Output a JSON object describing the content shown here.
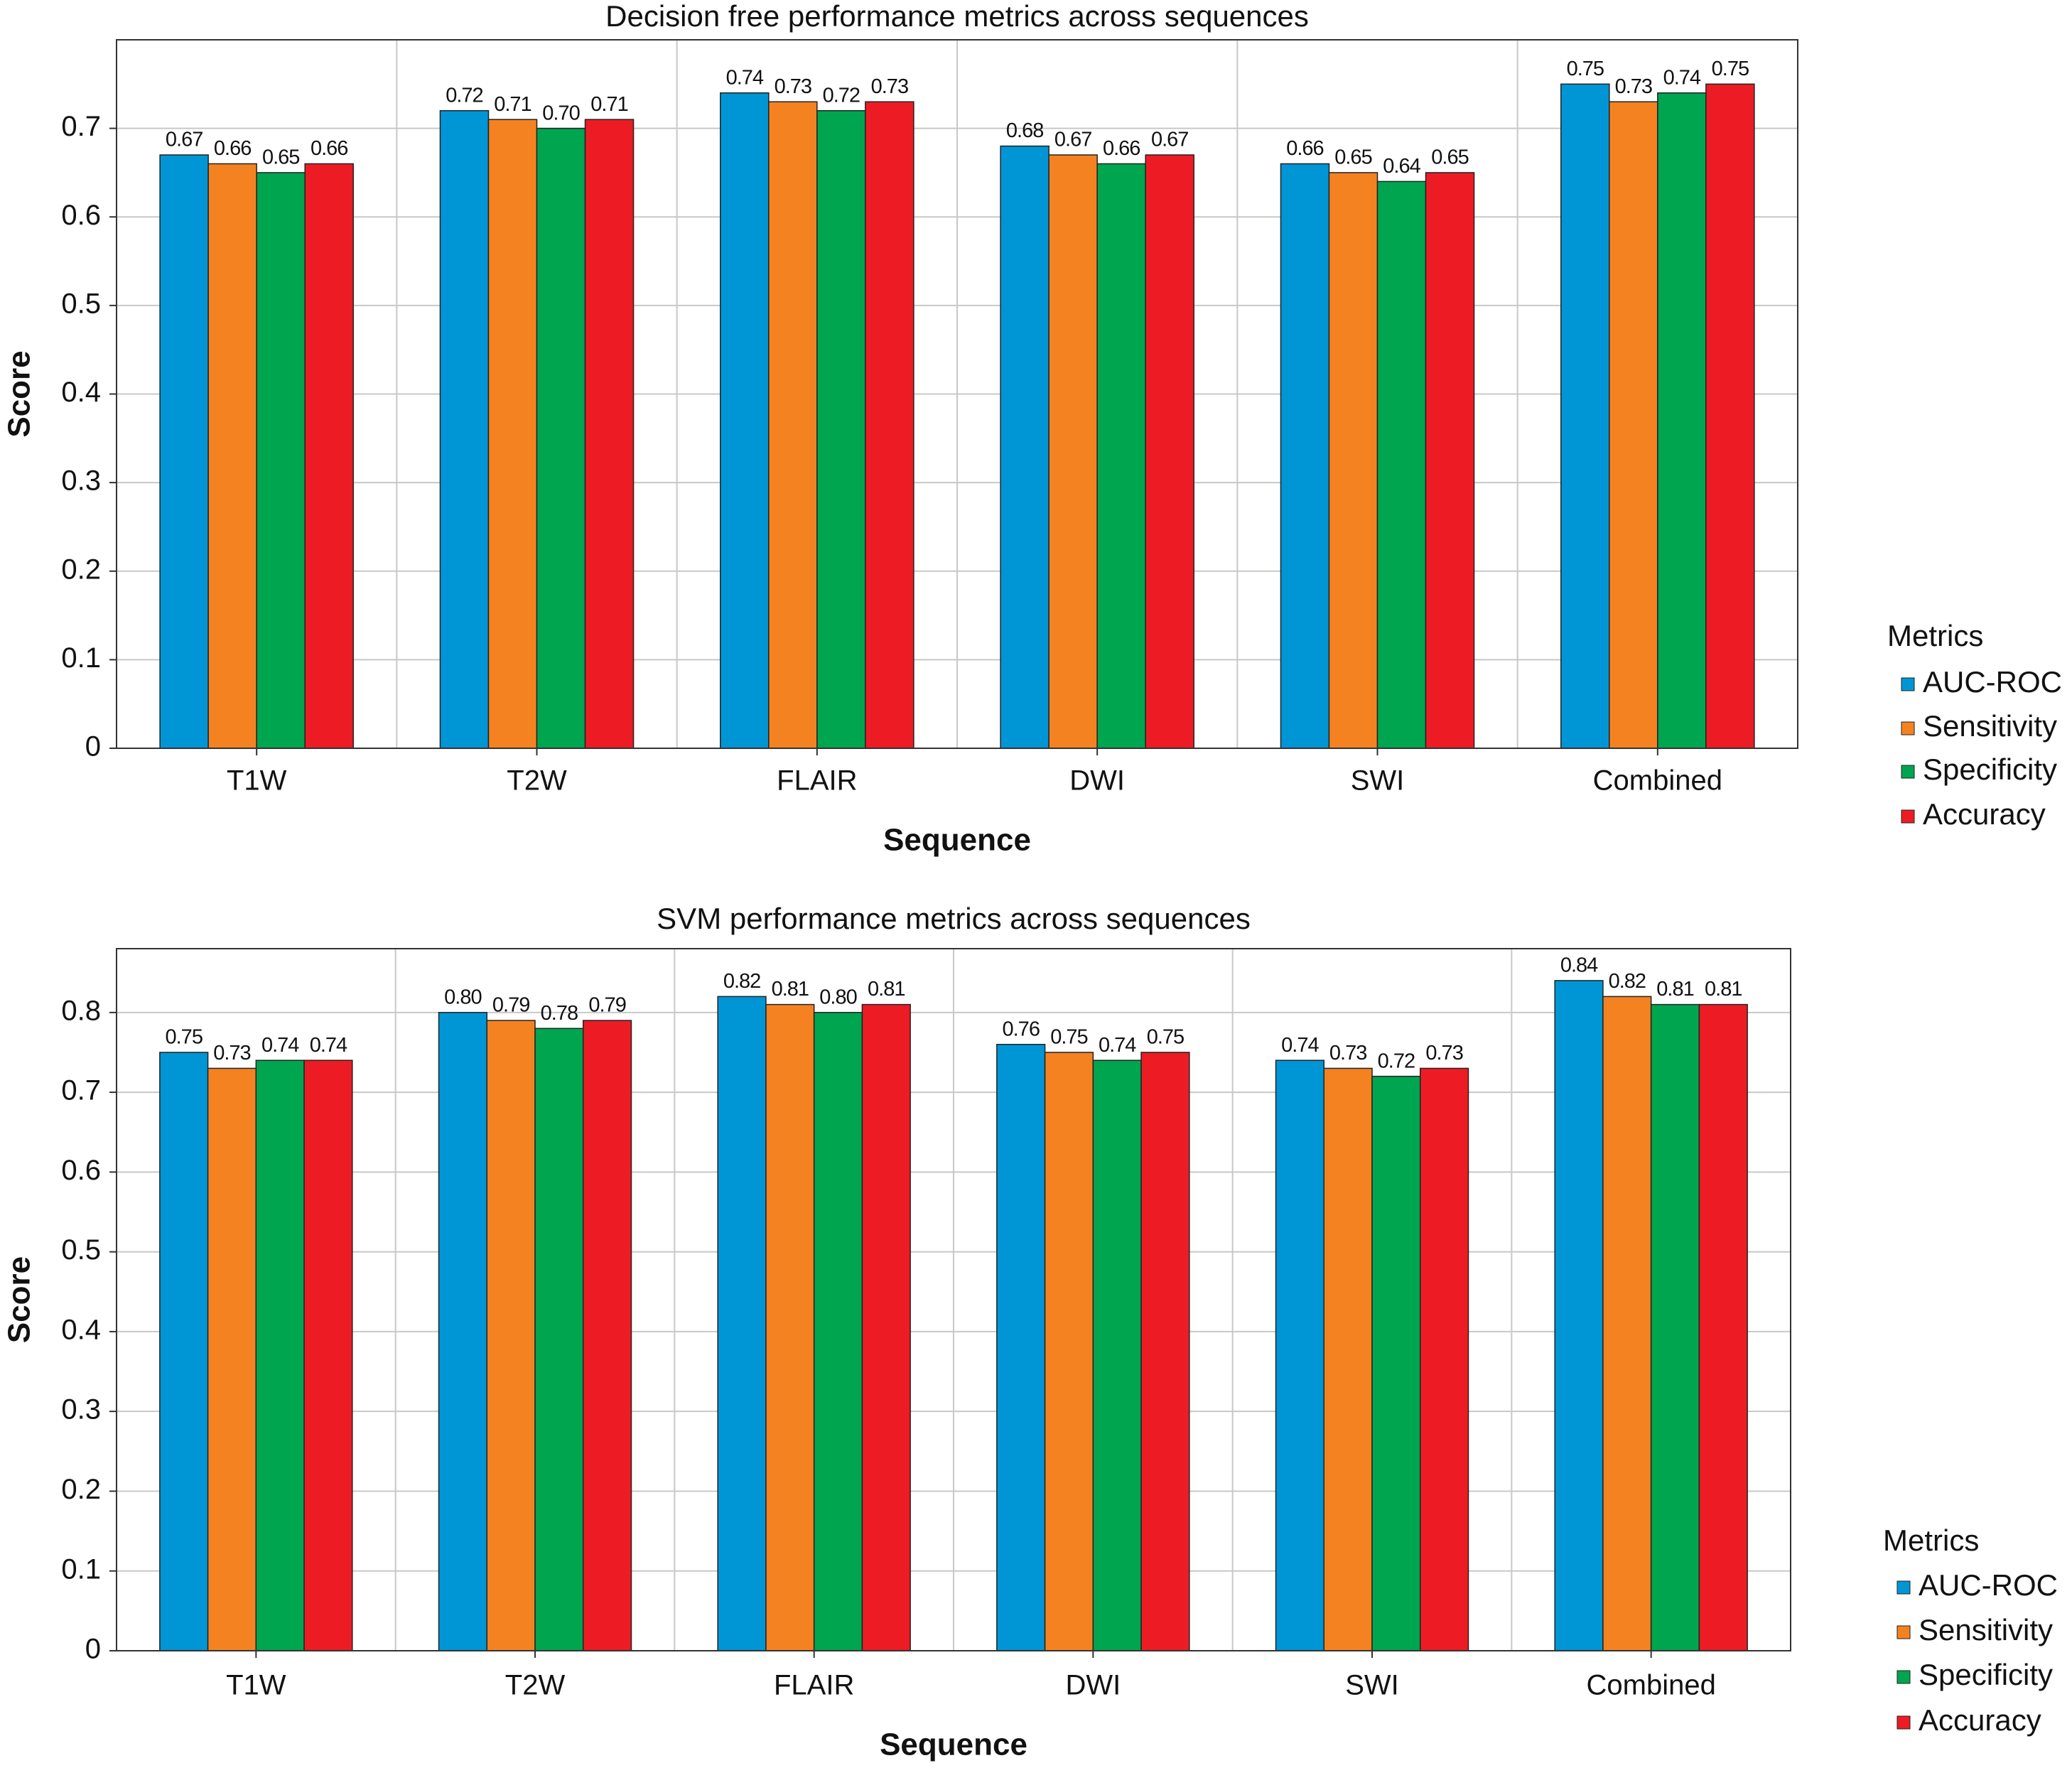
{
  "chart_data": [
    {
      "type": "bar",
      "title": "Decision free performance metrics across sequences",
      "xlabel": "Sequence",
      "ylabel": "Score",
      "categories": [
        "T1W",
        "T2W",
        "FLAIR",
        "DWI",
        "SWI",
        "Combined"
      ],
      "series": [
        {
          "name": "AUC-ROC",
          "color": "#0096d6",
          "values": [
            0.67,
            0.72,
            0.74,
            0.68,
            0.66,
            0.75
          ],
          "value_labels": [
            "0.67",
            "0.72",
            "0.74",
            "0.68",
            "0.66",
            "0.75"
          ]
        },
        {
          "name": "Sensitivity",
          "color": "#f58220",
          "values": [
            0.66,
            0.71,
            0.73,
            0.67,
            0.65,
            0.73
          ],
          "value_labels": [
            "0.66",
            "0.71",
            "0.73",
            "0.67",
            "0.65",
            "0.73"
          ]
        },
        {
          "name": "Specificity",
          "color": "#00a550",
          "values": [
            0.65,
            0.7,
            0.72,
            0.66,
            0.64,
            0.74
          ],
          "value_labels": [
            "0.65",
            "0.70",
            "0.72",
            "0.66",
            "0.64",
            "0.74"
          ]
        },
        {
          "name": "Accuracy",
          "color": "#ed1c24",
          "values": [
            0.66,
            0.71,
            0.73,
            0.67,
            0.65,
            0.75
          ],
          "value_labels": [
            "0.66",
            "0.71",
            "0.73",
            "0.67",
            "0.65",
            "0.75"
          ]
        }
      ],
      "ylim": [
        0,
        0.8
      ],
      "yticks": [
        0,
        0.1,
        0.2,
        0.3,
        0.4,
        0.5,
        0.6,
        0.7
      ],
      "grid": true,
      "legend_title": "Metrics",
      "legend": "right"
    },
    {
      "type": "bar",
      "title": "SVM performance metrics across sequences",
      "xlabel": "Sequence",
      "ylabel": "Score",
      "categories": [
        "T1W",
        "T2W",
        "FLAIR",
        "DWI",
        "SWI",
        "Combined"
      ],
      "series": [
        {
          "name": "AUC-ROC",
          "color": "#0096d6",
          "values": [
            0.75,
            0.8,
            0.82,
            0.76,
            0.74,
            0.84
          ],
          "value_labels": [
            "0.75",
            "0.80",
            "0.82",
            "0.76",
            "0.74",
            "0.84"
          ]
        },
        {
          "name": "Sensitivity",
          "color": "#f58220",
          "values": [
            0.73,
            0.79,
            0.81,
            0.75,
            0.73,
            0.82
          ],
          "value_labels": [
            "0.73",
            "0.79",
            "0.81",
            "0.75",
            "0.73",
            "0.82"
          ]
        },
        {
          "name": "Specificity",
          "color": "#00a550",
          "values": [
            0.74,
            0.78,
            0.8,
            0.74,
            0.72,
            0.81
          ],
          "value_labels": [
            "0.74",
            "0.78",
            "0.80",
            "0.74",
            "0.72",
            "0.81"
          ]
        },
        {
          "name": "Accuracy",
          "color": "#ed1c24",
          "values": [
            0.74,
            0.79,
            0.81,
            0.75,
            0.73,
            0.81
          ],
          "value_labels": [
            "0.74",
            "0.79",
            "0.81",
            "0.75",
            "0.73",
            "0.81"
          ]
        }
      ],
      "ylim": [
        0,
        0.88
      ],
      "yticks": [
        0,
        0.1,
        0.2,
        0.3,
        0.4,
        0.5,
        0.6,
        0.7,
        0.8
      ],
      "grid": true,
      "legend_title": "Metrics",
      "legend": "right"
    }
  ]
}
